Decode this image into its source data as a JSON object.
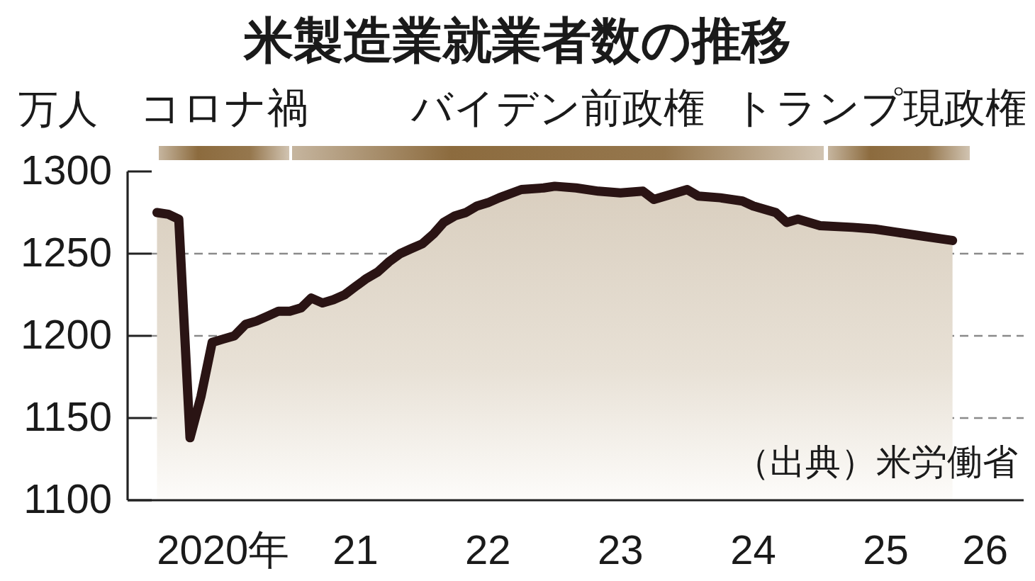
{
  "chart_data": {
    "type": "area",
    "title": "米製造業就業者数の推移",
    "ylabel": "万人",
    "series": [
      {
        "color": "#2a1414",
        "x": [
          "2020-01",
          "2020-02",
          "2020-03",
          "2020-04",
          "2020-05",
          "2020-06",
          "2020-07",
          "2020-08",
          "2020-09",
          "2020-10",
          "2020-11",
          "2020-12",
          "2021-01",
          "2021-02",
          "2021-03",
          "2021-04",
          "2021-05",
          "2021-06",
          "2021-07",
          "2021-08",
          "2021-09",
          "2021-10",
          "2021-11",
          "2021-12",
          "2022-01",
          "2022-02",
          "2022-03",
          "2022-04",
          "2022-05",
          "2022-06",
          "2022-07",
          "2022-08",
          "2022-10",
          "2022-12",
          "2023-01",
          "2023-03",
          "2023-05",
          "2023-07",
          "2023-09",
          "2023-10",
          "2023-12",
          "2024-01",
          "2024-02",
          "2024-04",
          "2024-06",
          "2024-07",
          "2024-09",
          "2024-10",
          "2024-11",
          "2025-01",
          "2025-04",
          "2025-06",
          "2025-08",
          "2025-10",
          "2025-12",
          "2026-01"
        ],
        "values": [
          1275,
          1274,
          1271,
          1138,
          1163,
          1196,
          1198,
          1200,
          1207,
          1209,
          1212,
          1215,
          1215,
          1217,
          1223,
          1220,
          1222,
          1225,
          1230,
          1235,
          1239,
          1245,
          1250,
          1253,
          1256,
          1262,
          1269,
          1273,
          1275,
          1279,
          1281,
          1284,
          1289,
          1290,
          1291,
          1290,
          1288,
          1287,
          1288,
          1283,
          1287,
          1289,
          1285,
          1284,
          1282,
          1279,
          1275,
          1269,
          1271,
          1267,
          1266,
          1265,
          1263,
          1261,
          1259,
          1258
        ]
      }
    ],
    "xlim": [
      "2019-10-12",
      "2026-07-16"
    ],
    "xticks": [
      {
        "value": "2020-07",
        "label": "2020年"
      },
      {
        "value": "2021-07",
        "label": "21"
      },
      {
        "value": "2022-07",
        "label": "22"
      },
      {
        "value": "2023-07",
        "label": "23"
      },
      {
        "value": "2024-07",
        "label": "24"
      },
      {
        "value": "2025-07",
        "label": "25"
      },
      {
        "value": "2026-04",
        "label": "26"
      }
    ],
    "ylim": [
      1100,
      1300
    ],
    "yticks": [
      1100,
      1150,
      1200,
      1250,
      1300
    ],
    "grid": "y",
    "annotations": [
      "コロナ禍",
      "バイデン前政権",
      "トランプ現政権",
      "（出典）米労働省"
    ]
  }
}
